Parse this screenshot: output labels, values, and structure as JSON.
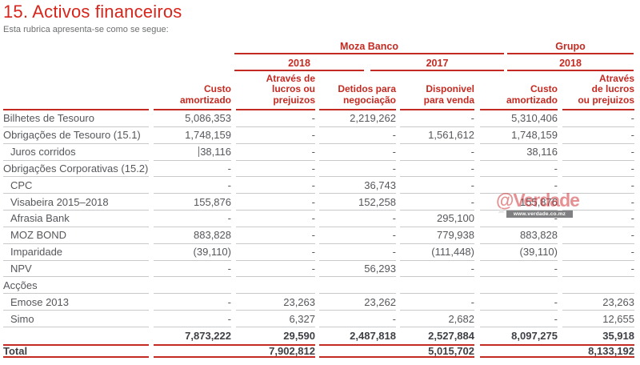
{
  "page": {
    "title": "15. Activos financeiros",
    "subtitle": "Esta rubrica apresenta-se como se segue:"
  },
  "colors": {
    "accent_red": "#c32b22",
    "title_red": "#d8251c",
    "text_gray": "#55575b",
    "line_gray": "#c7c9ca"
  },
  "table": {
    "groups": [
      {
        "label": "Moza Banco"
      },
      {
        "label": "Grupo"
      }
    ],
    "years": [
      {
        "label": "2018"
      },
      {
        "label": "2017"
      },
      {
        "label": "2018"
      }
    ],
    "columns": [
      {
        "label": "Custo\namortizado"
      },
      {
        "label": "Através de\nlucros ou\nprejuizos"
      },
      {
        "label": "Detidos para\nnegociação"
      },
      {
        "label": "Disponivel\npara venda"
      },
      {
        "label": "Custo\namortizado"
      },
      {
        "label": "Através\nde lucros\nou prejuizos"
      }
    ],
    "rows": [
      {
        "label": "Bilhetes de Tesouro",
        "indent": false,
        "values": [
          "5,086,353",
          "-",
          "2,219,262",
          "-",
          "5,310,406",
          "-"
        ]
      },
      {
        "label": "Obrigações de Tesouro (15.1)",
        "indent": false,
        "values": [
          "1,748,159",
          "-",
          "-",
          "1,561,612",
          "1,748,159",
          "-"
        ]
      },
      {
        "label": "Juros corridos",
        "indent": true,
        "cursor_artifact": true,
        "values": [
          "38,116",
          "-",
          "-",
          "-",
          "38,116",
          "-"
        ]
      },
      {
        "label": "Obrigações Corporativas (15.2)",
        "indent": false,
        "values": [
          "-",
          "-",
          "-",
          "-",
          "-",
          "-"
        ]
      },
      {
        "label": "CPC",
        "indent": true,
        "values": [
          "-",
          "-",
          "36,743",
          "-",
          "-",
          "-"
        ]
      },
      {
        "label": "Visabeira 2015–2018",
        "indent": true,
        "values": [
          "155,876",
          "-",
          "152,258",
          "-",
          "155,876",
          "-"
        ]
      },
      {
        "label": "Afrasia Bank",
        "indent": true,
        "values": [
          "-",
          "-",
          "-",
          "295,100",
          "-",
          "-"
        ]
      },
      {
        "label": "MOZ BOND",
        "indent": true,
        "values": [
          "883,828",
          "-",
          "-",
          "779,938",
          "883,828",
          "-"
        ]
      },
      {
        "label": "Imparidade",
        "indent": true,
        "values": [
          "(39,110)",
          "-",
          "-",
          "(111,448)",
          "(39,110)",
          "-"
        ]
      },
      {
        "label": "NPV",
        "indent": true,
        "values": [
          "-",
          "-",
          "56,293",
          "-",
          "-",
          "-"
        ]
      },
      {
        "label": "Acções",
        "indent": false,
        "values": [
          "",
          "",
          "",
          "",
          "",
          ""
        ]
      },
      {
        "label": "Emose 2013",
        "indent": true,
        "values": [
          "-",
          "23,263",
          "23,262",
          "-",
          "-",
          "23,263"
        ]
      },
      {
        "label": "Simo",
        "indent": true,
        "values": [
          "-",
          "6,327",
          "-",
          "2,682",
          "-",
          "12,655"
        ]
      }
    ],
    "subtotal": {
      "values": [
        "7,873,222",
        "29,590",
        "2,487,818",
        "2,527,884",
        "8,097,275",
        "35,918"
      ]
    },
    "total": {
      "label": "Total",
      "values": [
        "7,902,812",
        "5,015,702",
        "8,133,192"
      ]
    }
  },
  "watermark": {
    "handle": "@Verdade",
    "url": "www.verdade.co.mz"
  }
}
